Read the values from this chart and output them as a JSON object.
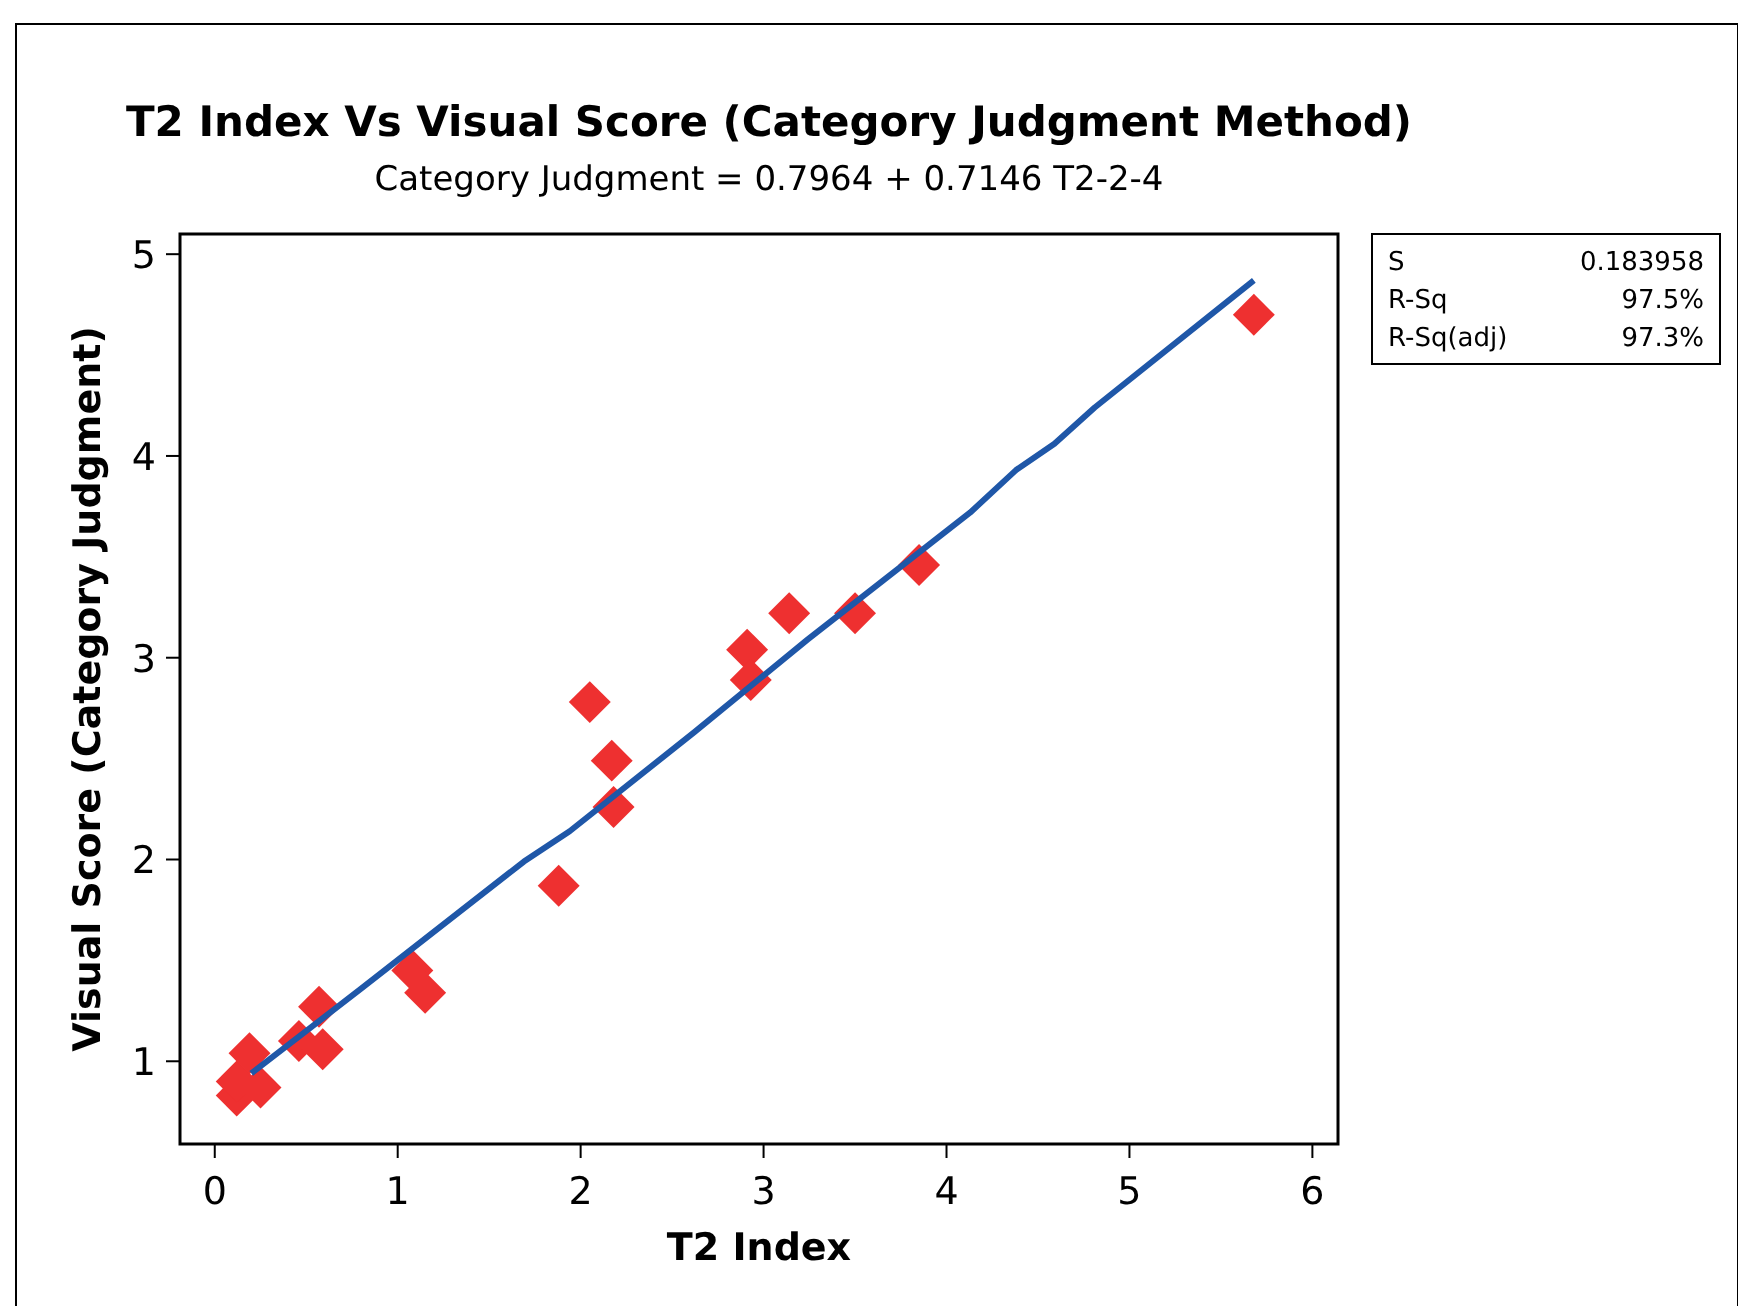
{
  "chart_data": {
    "type": "scatter",
    "title": "T2 Index Vs Visual Score (Category Judgment Method)",
    "subtitle": "Category Judgment =  0.7964 + 0.7146 T2-2-4",
    "xlabel": "T2 Index",
    "ylabel": "Visual Score (Category Judgment)",
    "x": [
      0.12,
      0.12,
      0.19,
      0.25,
      0.46,
      0.57,
      0.59,
      1.08,
      1.15,
      1.88,
      2.05,
      2.17,
      2.18,
      2.91,
      2.93,
      3.14,
      3.5,
      3.85,
      5.68
    ],
    "series": [
      {
        "marker": "diamond",
        "color": "#ee3030",
        "values": [
          0.83,
          0.9,
          1.04,
          0.87,
          1.1,
          1.27,
          1.06,
          1.45,
          1.34,
          1.87,
          2.78,
          2.49,
          2.26,
          3.04,
          2.89,
          3.22,
          3.22,
          3.46,
          4.7
        ]
      },
      {
        "type": "line",
        "marker": "none",
        "color": "#1f57a8",
        "x": [
          0.2,
          0.8,
          1.69,
          1.94,
          2.62,
          3.24,
          4.13,
          4.38,
          4.59,
          4.81,
          5.68
        ],
        "values": [
          0.94,
          1.36,
          1.99,
          2.14,
          2.63,
          3.09,
          3.72,
          3.93,
          4.06,
          4.24,
          4.87
        ]
      }
    ],
    "xlim": [
      -0.19,
      6.14
    ],
    "ylim": [
      0.59,
      5.1
    ],
    "xticks": [
      0,
      1,
      2,
      3,
      4,
      5,
      6
    ],
    "yticks": [
      1,
      2,
      3,
      4,
      5
    ],
    "grid": false,
    "annotations": [
      "S",
      "0.183958",
      "R-Sq",
      "97.5%",
      "R-Sq(adj)",
      "97.3%"
    ]
  }
}
